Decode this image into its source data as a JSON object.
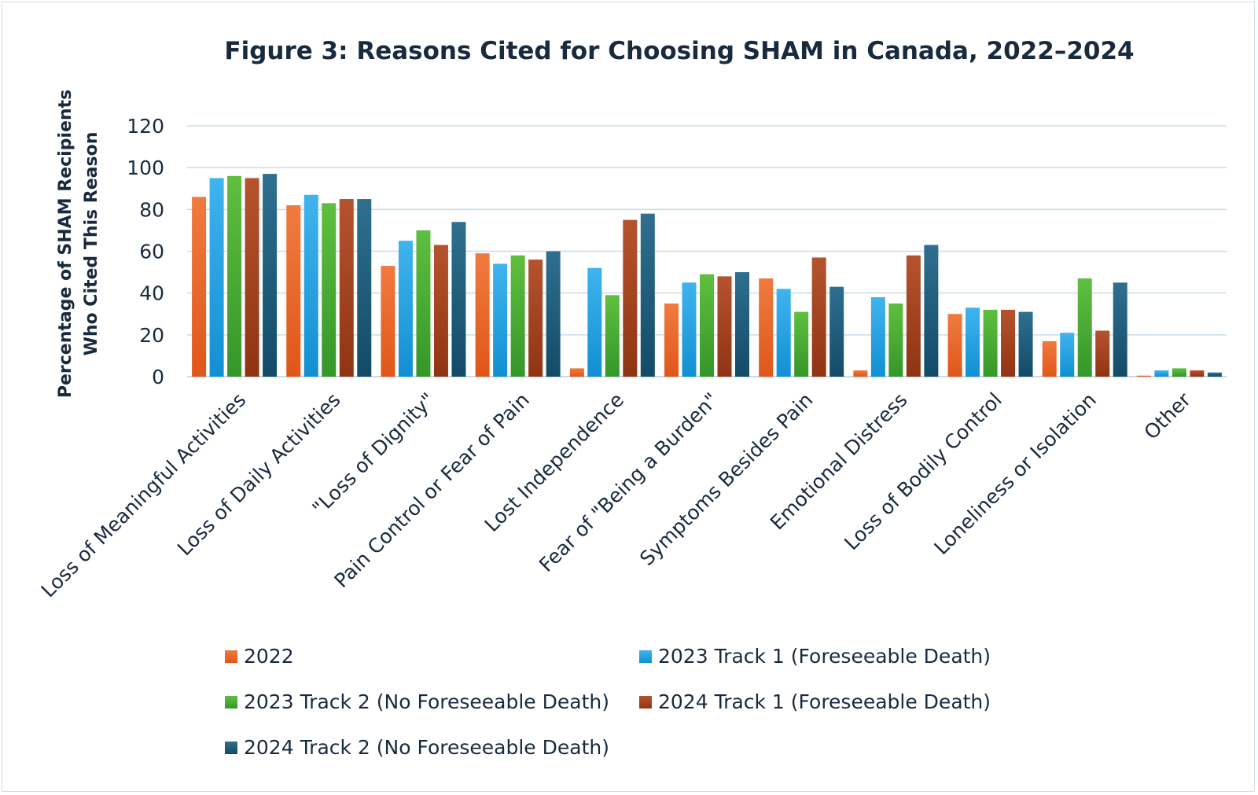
{
  "chart_data": {
    "type": "bar",
    "title": "Figure 3: Reasons Cited for Choosing SHAM in Canada, 2022–2024",
    "ylabel_lines": [
      "Percentage of SHAM Recipients",
      "Who Cited This Reason"
    ],
    "xlabel": "",
    "ylim": [
      0,
      120
    ],
    "yticks": [
      0,
      20,
      40,
      60,
      80,
      100,
      120
    ],
    "grid": true,
    "legend_position": "bottom",
    "categories": [
      "Loss of Meaningful Activities",
      "Loss of Daily Activities",
      "\"Loss of Dignity\"",
      "Pain Control or Fear of Pain",
      "Lost Independence",
      "Fear of \"Being a Burden\"",
      "Symptoms Besides Pain",
      "Emotional Distress",
      "Loss of Bodily Control",
      "Loneliness or Isolation",
      "Other"
    ],
    "series": [
      {
        "name": "2022",
        "color": "#f07b3f",
        "color_dark": "#e0561a",
        "values": [
          86,
          82,
          53,
          59,
          4,
          35,
          47,
          3,
          30,
          17,
          0.5
        ]
      },
      {
        "name": "2023 Track 1 (Foreseeable Death)",
        "color": "#3fb4ee",
        "color_dark": "#128fd3",
        "values": [
          95,
          87,
          65,
          54,
          52,
          45,
          42,
          38,
          33,
          21,
          3
        ]
      },
      {
        "name": "2023 Track 2 (No Foreseeable Death)",
        "color": "#5fbf3f",
        "color_dark": "#35962a",
        "values": [
          96,
          83,
          70,
          58,
          39,
          49,
          31,
          35,
          32,
          47,
          4
        ]
      },
      {
        "name": "2024 Track 1 (Foreseeable Death)",
        "color": "#b6532e",
        "color_dark": "#8f3413",
        "values": [
          95,
          85,
          63,
          56,
          75,
          48,
          57,
          58,
          32,
          22,
          3
        ]
      },
      {
        "name": "2024 Track 2 (No Foreseeable Death)",
        "color": "#2f6f8f",
        "color_dark": "#134b67",
        "values": [
          97,
          85,
          74,
          60,
          78,
          50,
          43,
          63,
          31,
          45,
          2
        ]
      }
    ]
  }
}
